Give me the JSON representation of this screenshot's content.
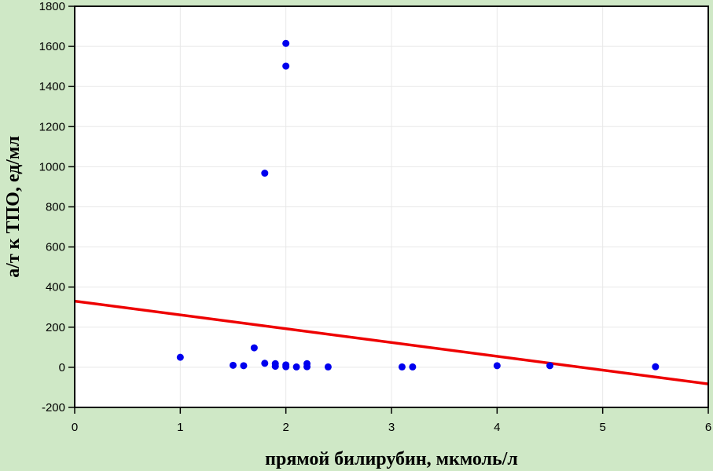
{
  "chart_data": {
    "type": "scatter",
    "xlabel": "прямой билирубин, мкмоль/л",
    "ylabel": "а/т к ТПО, ед/мл",
    "xlim": [
      0,
      6
    ],
    "ylim": [
      -200,
      1800
    ],
    "xticks": [
      0,
      1,
      2,
      3,
      4,
      5,
      6
    ],
    "yticks": [
      -200,
      0,
      200,
      400,
      600,
      800,
      1000,
      1200,
      1400,
      1600,
      1800
    ],
    "grid": true,
    "points": [
      {
        "x": 1.0,
        "y": 50
      },
      {
        "x": 1.5,
        "y": 10
      },
      {
        "x": 1.6,
        "y": 8
      },
      {
        "x": 1.7,
        "y": 97
      },
      {
        "x": 1.8,
        "y": 968
      },
      {
        "x": 1.8,
        "y": 20
      },
      {
        "x": 1.9,
        "y": 18
      },
      {
        "x": 1.9,
        "y": 5
      },
      {
        "x": 2.0,
        "y": 1615
      },
      {
        "x": 2.0,
        "y": 1502
      },
      {
        "x": 2.0,
        "y": 12
      },
      {
        "x": 2.0,
        "y": 3
      },
      {
        "x": 2.1,
        "y": 2
      },
      {
        "x": 2.2,
        "y": 18
      },
      {
        "x": 2.2,
        "y": 3
      },
      {
        "x": 2.4,
        "y": 2
      },
      {
        "x": 3.1,
        "y": 2
      },
      {
        "x": 3.2,
        "y": 2
      },
      {
        "x": 4.0,
        "y": 8
      },
      {
        "x": 4.5,
        "y": 8
      },
      {
        "x": 5.5,
        "y": 3
      }
    ],
    "regression": {
      "x": [
        0,
        6
      ],
      "y": [
        330,
        -83
      ]
    },
    "colors": {
      "background": "#cfe8c6",
      "plot_area": "#ffffff",
      "points": "#0000ee",
      "regression": "#ee0000",
      "grid": "#e8e8e8"
    }
  }
}
